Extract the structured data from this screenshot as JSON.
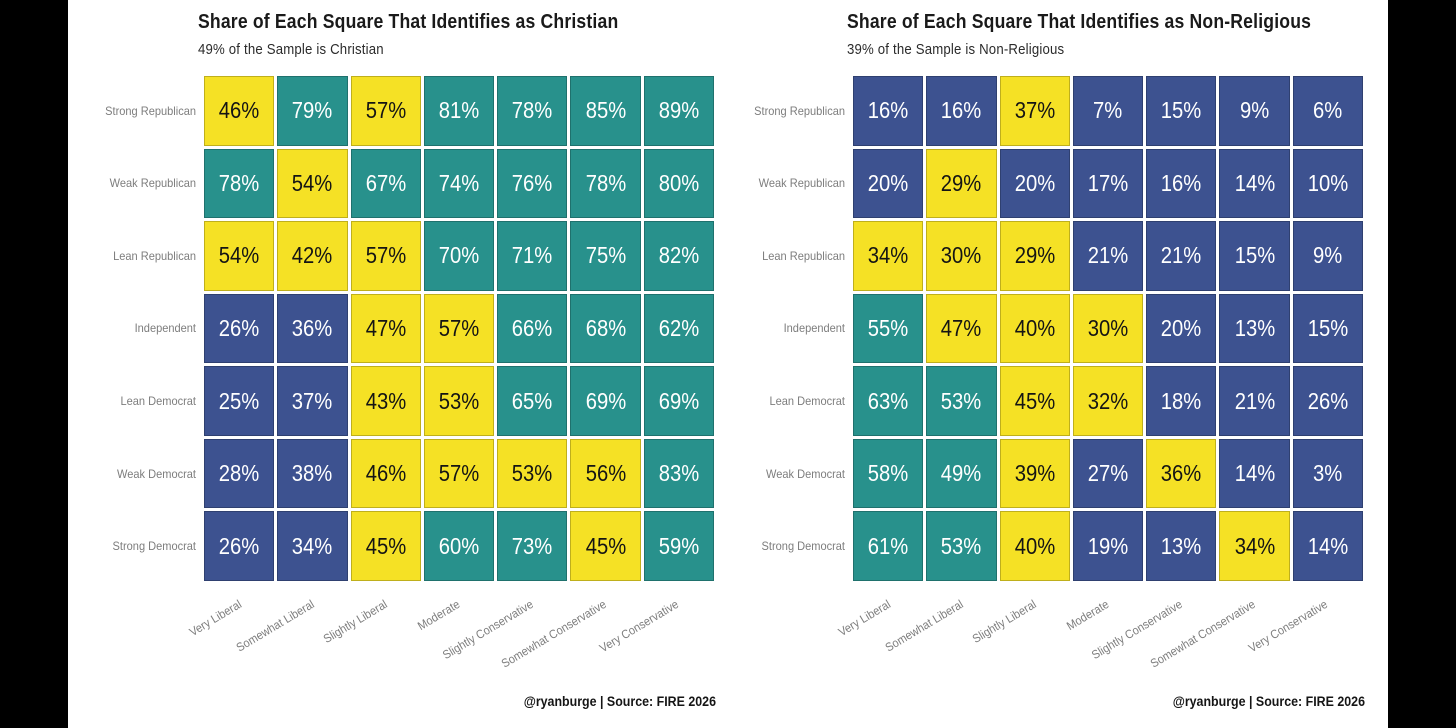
{
  "page": {
    "background": "#FFFFFF",
    "edge_bar_color": "#000000"
  },
  "palette": {
    "yellow": "#F5E125",
    "teal": "#28918C",
    "blue": "#3D5290",
    "text_on_yellow": "#141414",
    "text_on_dark": "#FFFFFF",
    "axis_label_color": "#7D7D7D",
    "title_color": "#1A1A1A",
    "subtitle_color": "#2B2B2B",
    "footer_color": "#151515"
  },
  "chart_data": [
    {
      "type": "heatmap",
      "title": "Share of Each Square That Identifies as Christian",
      "subtitle": "49% of the Sample is Christian",
      "footer": "@ryanburge | Source: FIRE 2026",
      "rows": [
        "Strong Republican",
        "Weak Republican",
        "Lean Republican",
        "Independent",
        "Lean Democrat",
        "Weak Democrat",
        "Strong Democrat"
      ],
      "columns": [
        "Very Liberal",
        "Somewhat Liberal",
        "Slightly Liberal",
        "Moderate",
        "Slightly Conservative",
        "Somewhat Conservative",
        "Very Conservative"
      ],
      "unit": "%",
      "values": [
        [
          46,
          79,
          57,
          81,
          78,
          85,
          89
        ],
        [
          78,
          54,
          67,
          74,
          76,
          78,
          80
        ],
        [
          54,
          42,
          57,
          70,
          71,
          75,
          82
        ],
        [
          26,
          36,
          47,
          57,
          66,
          68,
          62
        ],
        [
          25,
          37,
          43,
          53,
          65,
          69,
          69
        ],
        [
          28,
          38,
          46,
          57,
          53,
          56,
          83
        ],
        [
          26,
          34,
          45,
          60,
          73,
          45,
          59
        ]
      ],
      "cell_colors": [
        [
          "yellow",
          "teal",
          "yellow",
          "teal",
          "teal",
          "teal",
          "teal"
        ],
        [
          "teal",
          "yellow",
          "teal",
          "teal",
          "teal",
          "teal",
          "teal"
        ],
        [
          "yellow",
          "yellow",
          "yellow",
          "teal",
          "teal",
          "teal",
          "teal"
        ],
        [
          "blue",
          "blue",
          "yellow",
          "yellow",
          "teal",
          "teal",
          "teal"
        ],
        [
          "blue",
          "blue",
          "yellow",
          "yellow",
          "teal",
          "teal",
          "teal"
        ],
        [
          "blue",
          "blue",
          "yellow",
          "yellow",
          "yellow",
          "yellow",
          "teal"
        ],
        [
          "blue",
          "blue",
          "yellow",
          "teal",
          "teal",
          "yellow",
          "teal"
        ]
      ]
    },
    {
      "type": "heatmap",
      "title": "Share of Each Square That Identifies as Non-Religious",
      "subtitle": "39% of the Sample is Non-Religious",
      "footer": "@ryanburge | Source: FIRE 2026",
      "rows": [
        "Strong Republican",
        "Weak Republican",
        "Lean Republican",
        "Independent",
        "Lean Democrat",
        "Weak Democrat",
        "Strong Democrat"
      ],
      "columns": [
        "Very Liberal",
        "Somewhat Liberal",
        "Slightly Liberal",
        "Moderate",
        "Slightly Conservative",
        "Somewhat Conservative",
        "Very Conservative"
      ],
      "unit": "%",
      "values": [
        [
          16,
          16,
          37,
          7,
          15,
          9,
          6
        ],
        [
          20,
          29,
          20,
          17,
          16,
          14,
          10
        ],
        [
          34,
          30,
          29,
          21,
          21,
          15,
          9
        ],
        [
          55,
          47,
          40,
          30,
          20,
          13,
          15
        ],
        [
          63,
          53,
          45,
          32,
          18,
          21,
          26
        ],
        [
          58,
          49,
          39,
          27,
          36,
          14,
          3
        ],
        [
          61,
          53,
          40,
          19,
          13,
          34,
          14
        ]
      ],
      "cell_colors": [
        [
          "blue",
          "blue",
          "yellow",
          "blue",
          "blue",
          "blue",
          "blue"
        ],
        [
          "blue",
          "yellow",
          "blue",
          "blue",
          "blue",
          "blue",
          "blue"
        ],
        [
          "yellow",
          "yellow",
          "yellow",
          "blue",
          "blue",
          "blue",
          "blue"
        ],
        [
          "teal",
          "yellow",
          "yellow",
          "yellow",
          "blue",
          "blue",
          "blue"
        ],
        [
          "teal",
          "teal",
          "yellow",
          "yellow",
          "blue",
          "blue",
          "blue"
        ],
        [
          "teal",
          "teal",
          "yellow",
          "blue",
          "yellow",
          "blue",
          "blue"
        ],
        [
          "teal",
          "teal",
          "yellow",
          "blue",
          "blue",
          "yellow",
          "blue"
        ]
      ]
    }
  ]
}
